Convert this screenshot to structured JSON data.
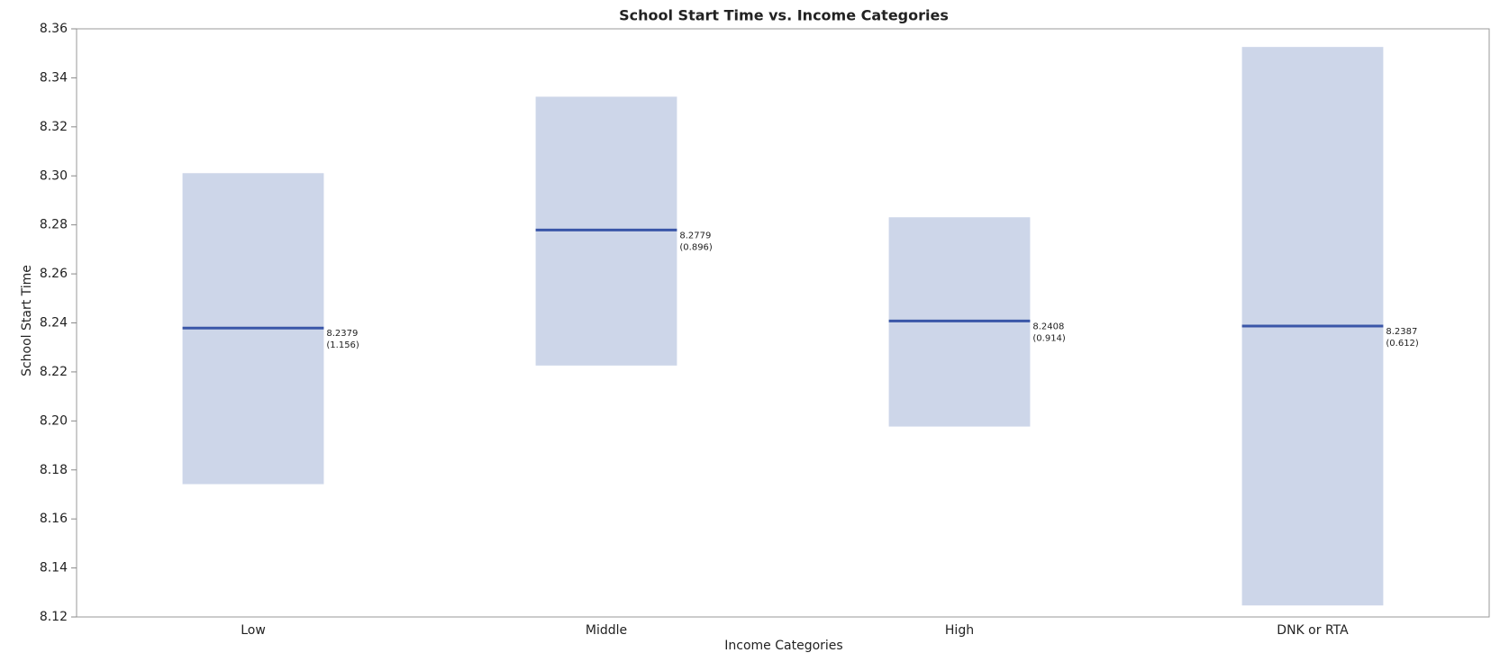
{
  "chart_data": {
    "type": "interval",
    "title": "School Start Time vs. Income Categories",
    "x_label": "Income Categories",
    "y_label": "School Start Time",
    "categories": [
      "Low",
      "Middle",
      "High",
      "DNK or RTA"
    ],
    "values": [
      8.2379,
      8.2779,
      8.2408,
      8.2387
    ],
    "lower": [
      8.1742,
      8.2226,
      8.1977,
      8.1247
    ],
    "upper": [
      8.3011,
      8.3323,
      8.2831,
      8.3526
    ],
    "sd": {
      "values": [
        1.156,
        0.896,
        0.914,
        0.612
      ],
      "value_labels": [
        "(1.156)",
        "(0.896)",
        "(0.914)",
        "(0.612)"
      ]
    },
    "band_color": "#cdd6e9",
    "line_color": "#3a56a8",
    "ylim": [
      8.12,
      8.36
    ],
    "yticks": [
      8.12,
      8.14,
      8.16,
      8.18,
      {
        "value": 8.2,
        "label": "8.20"
      },
      8.22,
      8.24,
      8.26,
      8.28,
      {
        "value": 8.3,
        "label": "8.30"
      },
      8.32,
      8.34,
      8.36
    ]
  }
}
